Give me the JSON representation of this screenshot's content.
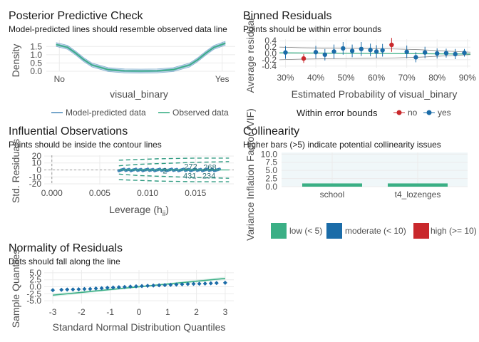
{
  "chart_data": [
    {
      "type": "line",
      "title": "Posterior Predictive Check",
      "subtitle": "Model-predicted lines should resemble observed data line",
      "xlabel": "visual_binary",
      "ylabel": "Density",
      "x_ticks": [
        "No",
        "Yes"
      ],
      "y_ticks": [
        "0.0",
        "0.5",
        "1.0",
        "1.5"
      ],
      "ylim": [
        0,
        1.9
      ],
      "series": [
        {
          "name": "Model-predicted data",
          "color": "#1b6ca8"
        },
        {
          "name": "Observed data",
          "color": "#3aaf85"
        }
      ],
      "density_x": [
        -0.02,
        0.05,
        0.1,
        0.15,
        0.2,
        0.3,
        0.4,
        0.5,
        0.6,
        0.7,
        0.8,
        0.85,
        0.9,
        0.95,
        1.02
      ],
      "density_y": [
        1.62,
        1.45,
        1.1,
        0.7,
        0.38,
        0.1,
        0.02,
        0.01,
        0.02,
        0.1,
        0.38,
        0.7,
        1.1,
        1.45,
        1.7
      ],
      "legend_position": "bottom"
    },
    {
      "type": "scatter",
      "title": "Binned Residuals",
      "subtitle": "Points should be within error bounds",
      "xlabel": "Estimated Probability of visual_binary",
      "ylabel": "Average residual",
      "x_ticks": [
        "30%",
        "40%",
        "50%",
        "60%",
        "70%",
        "80%",
        "90%"
      ],
      "y_ticks": [
        "-0.4",
        "-0.2",
        "0.0",
        "0.2",
        "0.4"
      ],
      "xlim": [
        0.28,
        0.91
      ],
      "ylim": [
        -0.45,
        0.45
      ],
      "legend_title": "Within error bounds",
      "legend": [
        {
          "label": "no",
          "color": "#c9282c"
        },
        {
          "label": "yes",
          "color": "#1b6ca8"
        }
      ],
      "bound_x": [
        0.28,
        0.35,
        0.42,
        0.5,
        0.58,
        0.66,
        0.74,
        0.82,
        0.91
      ],
      "bound_upper": [
        0.2,
        0.18,
        0.17,
        0.16,
        0.15,
        0.14,
        0.12,
        0.08,
        0.04
      ],
      "bound_lower": [
        -0.2,
        -0.18,
        -0.17,
        -0.16,
        -0.15,
        -0.14,
        -0.12,
        -0.08,
        -0.04
      ],
      "points": [
        {
          "x": 0.3,
          "y": 0.03,
          "err": 0.2,
          "in": true
        },
        {
          "x": 0.36,
          "y": -0.16,
          "err": 0.14,
          "in": false
        },
        {
          "x": 0.4,
          "y": 0.04,
          "err": 0.2,
          "in": true
        },
        {
          "x": 0.43,
          "y": -0.04,
          "err": 0.18,
          "in": true
        },
        {
          "x": 0.46,
          "y": 0.06,
          "err": 0.22,
          "in": true
        },
        {
          "x": 0.49,
          "y": 0.16,
          "err": 0.2,
          "in": true
        },
        {
          "x": 0.52,
          "y": 0.08,
          "err": 0.2,
          "in": true
        },
        {
          "x": 0.55,
          "y": 0.14,
          "err": 0.22,
          "in": true
        },
        {
          "x": 0.58,
          "y": 0.11,
          "err": 0.2,
          "in": true
        },
        {
          "x": 0.6,
          "y": 0.06,
          "err": 0.2,
          "in": true
        },
        {
          "x": 0.62,
          "y": 0.1,
          "err": 0.2,
          "in": true
        },
        {
          "x": 0.65,
          "y": 0.27,
          "err": 0.22,
          "in": false
        },
        {
          "x": 0.7,
          "y": 0.05,
          "err": 0.2,
          "in": true
        },
        {
          "x": 0.73,
          "y": -0.12,
          "err": 0.16,
          "in": true
        },
        {
          "x": 0.76,
          "y": 0.03,
          "err": 0.18,
          "in": true
        },
        {
          "x": 0.8,
          "y": 0.0,
          "err": 0.16,
          "in": true
        },
        {
          "x": 0.83,
          "y": 0.01,
          "err": 0.14,
          "in": true
        },
        {
          "x": 0.86,
          "y": -0.02,
          "err": 0.16,
          "in": true
        },
        {
          "x": 0.89,
          "y": 0.02,
          "err": 0.12,
          "in": true
        }
      ]
    },
    {
      "type": "scatter",
      "title": "Influential Observations",
      "subtitle": "Points should be inside the contour lines",
      "xlabel": "Leverage (h",
      "xlabel_sub": "ii",
      "xlabel_end": ")",
      "ylabel": "Std. Residuals",
      "x_ticks": [
        "0.000",
        "0.005",
        "0.010",
        "0.015"
      ],
      "x_tick_values": [
        0,
        0.005,
        0.01,
        0.015
      ],
      "y_ticks": [
        "-20",
        "-10",
        "0",
        "10",
        "20"
      ],
      "y_tick_values": [
        -20,
        -10,
        0,
        10,
        20
      ],
      "xlim": [
        -0.0008,
        0.019
      ],
      "ylim": [
        -21,
        21
      ],
      "point_x_range": [
        0.007,
        0.0175
      ],
      "contour_upper": [
        [
          0.007,
          6
        ],
        [
          0.009,
          8
        ],
        [
          0.011,
          9
        ],
        [
          0.013,
          10
        ],
        [
          0.015,
          11
        ],
        [
          0.017,
          11.5
        ],
        [
          0.0185,
          12
        ]
      ],
      "contour_upper2": [
        [
          0.007,
          14
        ],
        [
          0.009,
          15
        ],
        [
          0.011,
          16
        ],
        [
          0.013,
          16.5
        ],
        [
          0.015,
          17
        ],
        [
          0.017,
          17
        ],
        [
          0.0185,
          17
        ]
      ],
      "contour_lower": [
        [
          0.007,
          -6
        ],
        [
          0.009,
          -8
        ],
        [
          0.011,
          -9
        ],
        [
          0.013,
          -10
        ],
        [
          0.015,
          -11
        ],
        [
          0.017,
          -11.5
        ],
        [
          0.0185,
          -12
        ]
      ],
      "contour_lower2": [
        [
          0.007,
          -14
        ],
        [
          0.009,
          -15
        ],
        [
          0.011,
          -16
        ],
        [
          0.013,
          -16.5
        ],
        [
          0.015,
          -17
        ],
        [
          0.017,
          -17
        ],
        [
          0.0185,
          -17
        ]
      ],
      "labels": [
        {
          "text": "272",
          "x": 0.0145,
          "y": 5
        },
        {
          "text": "268",
          "x": 0.0165,
          "y": 4
        },
        {
          "text": "431",
          "x": 0.0144,
          "y": -8
        },
        {
          "text": "234",
          "x": 0.0164,
          "y": -8
        },
        {
          "text": "2",
          "x": 0.0118,
          "y": -1
        }
      ]
    },
    {
      "type": "bar",
      "title": "Collinearity",
      "subtitle": "Higher bars (>5) indicate potential collinearity issues",
      "xlabel": "",
      "ylabel": "Variance Inflation Factor (VIF)",
      "categories": [
        "school",
        "t4_lozenges"
      ],
      "values": [
        1.0,
        1.0
      ],
      "y_ticks": [
        "0.0",
        "2.5",
        "5.0",
        "7.5",
        "10.0"
      ],
      "ylim": [
        0,
        10.5
      ],
      "bar_color": "#3aaf85",
      "legend": [
        {
          "label": "low (< 5)",
          "color": "#3aaf85"
        },
        {
          "label": "moderate (< 10)",
          "color": "#1b6ca8"
        },
        {
          "label": "high (>= 10)",
          "color": "#c9282c"
        }
      ]
    },
    {
      "type": "scatter",
      "title": "Normality of Residuals",
      "subtitle": "Dots should fall along the line",
      "xlabel": "Standard Normal Distribution Quantiles",
      "ylabel": "Sample Quantiles",
      "x_ticks": [
        "-3",
        "-2",
        "-1",
        "0",
        "1",
        "2",
        "3"
      ],
      "y_ticks": [
        "-5.0",
        "-2.5",
        "0.0",
        "2.5",
        "5.0"
      ],
      "xlim": [
        -3.3,
        3.3
      ],
      "ylim": [
        -6,
        6
      ],
      "line": [
        [
          -3,
          -3
        ],
        [
          3,
          3
        ]
      ],
      "points": [
        [
          -3,
          -1.2
        ],
        [
          -2.7,
          -1.1
        ],
        [
          -2.5,
          -1.0
        ],
        [
          -2.3,
          -0.95
        ],
        [
          -2.1,
          -0.9
        ],
        [
          -1.9,
          -0.8
        ],
        [
          -1.7,
          -0.75
        ],
        [
          -1.5,
          -0.6
        ],
        [
          -1.3,
          -0.5
        ],
        [
          -1.1,
          -0.35
        ],
        [
          -0.9,
          -0.25
        ],
        [
          -0.7,
          -0.15
        ],
        [
          -0.5,
          -0.05
        ],
        [
          -0.3,
          0.05
        ],
        [
          -0.1,
          0.15
        ],
        [
          0.1,
          0.25
        ],
        [
          0.3,
          0.35
        ],
        [
          0.5,
          0.45
        ],
        [
          0.7,
          0.55
        ],
        [
          0.9,
          0.6
        ],
        [
          1.1,
          0.7
        ],
        [
          1.3,
          0.8
        ],
        [
          1.5,
          0.9
        ],
        [
          1.7,
          1.0
        ],
        [
          1.9,
          1.05
        ],
        [
          2.1,
          1.1
        ],
        [
          2.3,
          1.15
        ],
        [
          2.5,
          1.25
        ],
        [
          2.7,
          1.35
        ],
        [
          3,
          1.45
        ]
      ]
    }
  ]
}
